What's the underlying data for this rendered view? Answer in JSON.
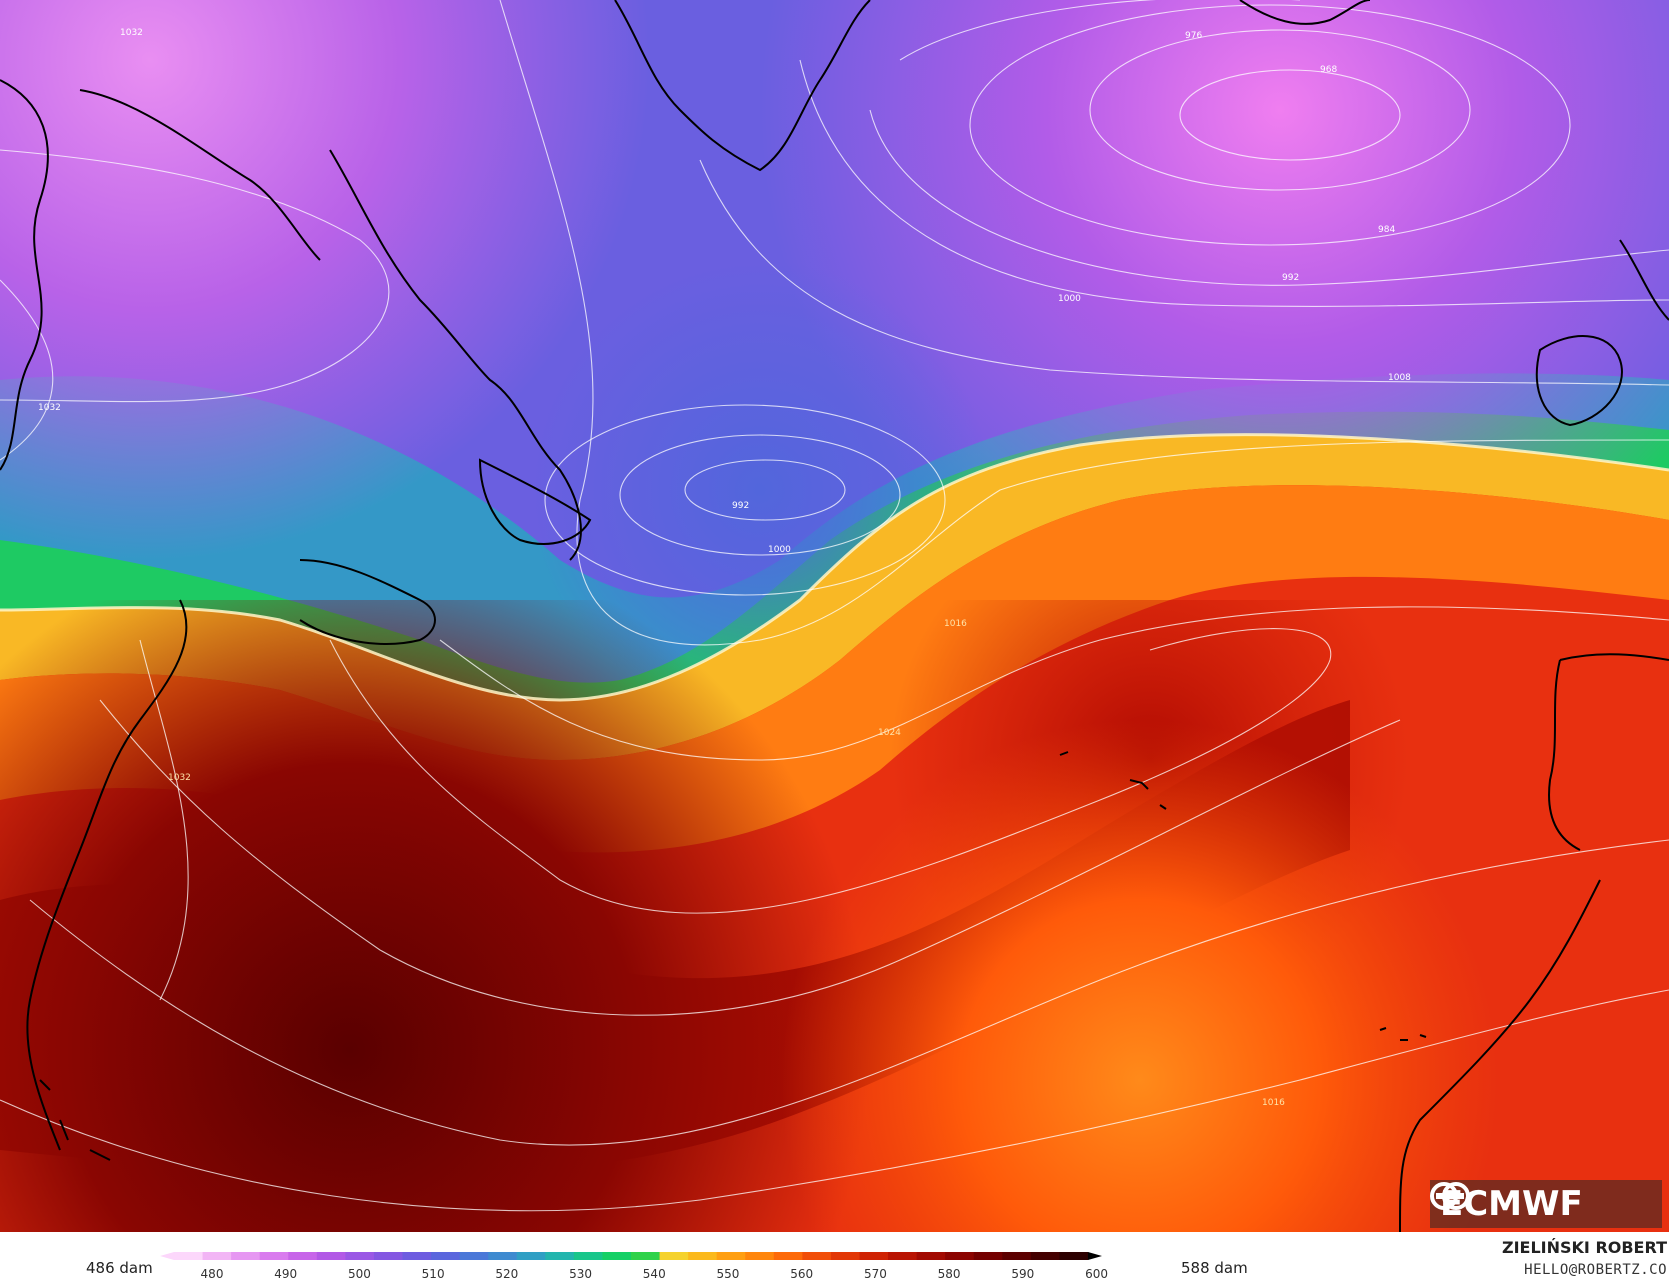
{
  "map": {
    "logo_text": "ECMWF",
    "isobar_labels": [
      "1032",
      "976",
      "968",
      "984",
      "992",
      "1000",
      "1008",
      "1032",
      "992",
      "1000",
      "1016",
      "1024",
      "1032",
      "1016"
    ]
  },
  "legend": {
    "min_label": "486 dam",
    "max_label": "588 dam",
    "ticks": [
      "480",
      "490",
      "500",
      "510",
      "520",
      "530",
      "540",
      "550",
      "560",
      "570",
      "580",
      "590",
      "600"
    ],
    "colors": [
      "#fcd7fb",
      "#f2b5f5",
      "#e697f2",
      "#d97bee",
      "#c765e9",
      "#b259e6",
      "#9a58e5",
      "#8457e2",
      "#6d5ce0",
      "#5a66dd",
      "#4a78d8",
      "#3e8ad0",
      "#2f9fc4",
      "#22b5ad",
      "#18c68a",
      "#15d066",
      "#2fd24a",
      "#f5d22d",
      "#fbb91c",
      "#ff9f12",
      "#ff860c",
      "#fd6a09",
      "#f14e08",
      "#e23706",
      "#cf2304",
      "#b91403",
      "#a20a02",
      "#8b0401",
      "#740000",
      "#5c0000",
      "#440000",
      "#2c0000"
    ]
  },
  "author": {
    "name": "ZIELIŃSKI ROBERT",
    "email": "HELLO@ROBERTZ.CO"
  }
}
